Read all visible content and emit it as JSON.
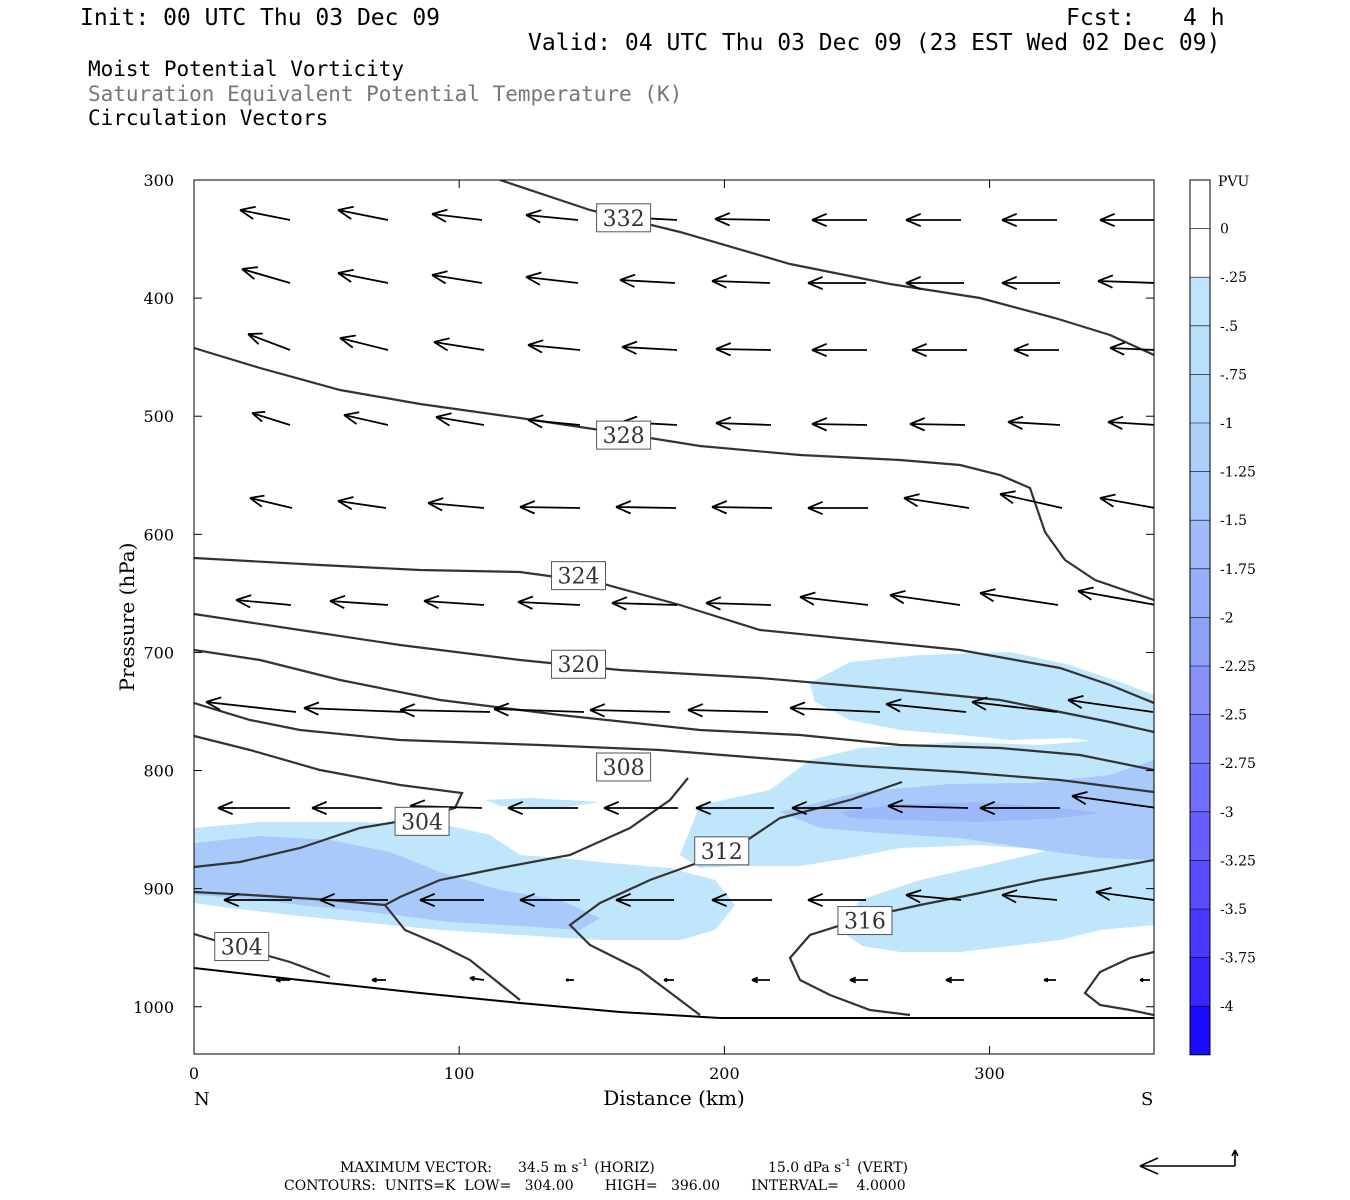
{
  "header": {
    "init": "Init: 00 UTC Thu 03 Dec 09",
    "fcst_label": "Fcst:",
    "fcst_value": "4 h",
    "valid": "Valid: 04 UTC Thu 03 Dec 09 (23 EST Wed 02 Dec 09)",
    "field1": "Moist Potential Vorticity",
    "field2": "Saturation Equivalent Potential Temperature (K)",
    "field3": "Circulation Vectors"
  },
  "colors": {
    "contour": "#333333",
    "vector": "#000000",
    "frame": "#000000"
  },
  "chart_data": {
    "type": "cross-section",
    "xlabel": "Distance (km)",
    "ylabel": "Pressure (hPa)",
    "xlim": [
      0,
      362
    ],
    "ylim": [
      1040,
      300
    ],
    "x_ticks": [
      0,
      100,
      200,
      300
    ],
    "y_ticks": [
      300,
      400,
      500,
      600,
      700,
      800,
      900,
      1000
    ],
    "left_end_label": "N",
    "right_end_label": "S",
    "colorbar": {
      "title": "PVU",
      "labels": [
        "0",
        "-.25",
        "-.5",
        "-.75",
        "-1",
        "-1.25",
        "-1.5",
        "-1.75",
        "-2",
        "-2.25",
        "-2.5",
        "-2.75",
        "-3",
        "-3.25",
        "-3.5",
        "-3.75",
        "-4"
      ],
      "colors": [
        "#ffffff",
        "#ffffff",
        "#bfe6fb",
        "#b8e0fa",
        "#b2d9fa",
        "#acd0fa",
        "#a6c6fa",
        "#a0bafa",
        "#98aefa",
        "#8fa0fb",
        "#8590fc",
        "#7b80fc",
        "#706ffd",
        "#655efd",
        "#584cfe",
        "#4a38fe",
        "#3a24ff",
        "#1a0aff"
      ]
    },
    "contour_labels": [
      {
        "text": "332",
        "x": 162,
        "p": 332
      },
      {
        "text": "328",
        "x": 162,
        "p": 516
      },
      {
        "text": "324",
        "x": 145,
        "p": 635
      },
      {
        "text": "320",
        "x": 145,
        "p": 710
      },
      {
        "text": "308",
        "x": 162,
        "p": 797
      },
      {
        "text": "304",
        "x": 86,
        "p": 843
      },
      {
        "text": "312",
        "x": 199,
        "p": 868
      },
      {
        "text": "316",
        "x": 253,
        "p": 927
      },
      {
        "text": "304",
        "x": 18,
        "p": 949
      }
    ],
    "footer": {
      "max_vector_label": "MAXIMUM VECTOR:",
      "horiz_value": "34.5 m s",
      "horiz_exp": "-1",
      "horiz_tag": "(HORIZ)",
      "vert_value": "15.0 dPa s",
      "vert_exp": "-1",
      "vert_tag": "(VERT)",
      "contours_line": "CONTOURS:  UNITS=K  LOW=   304.00       HIGH=   396.00       INTERVAL=    4.0000"
    }
  }
}
